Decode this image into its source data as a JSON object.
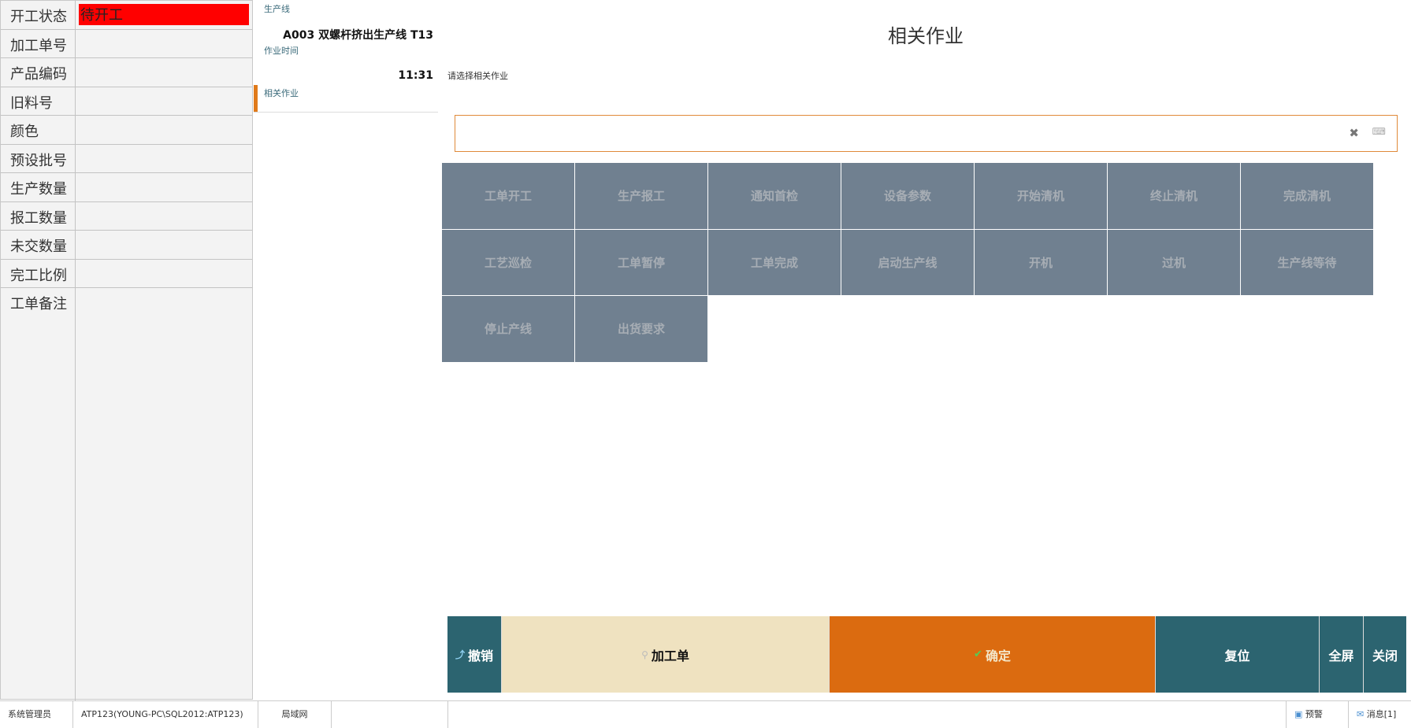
{
  "left": {
    "rows": [
      {
        "label": "开工状态",
        "value": "待开工",
        "highlight": "#ff0000"
      },
      {
        "label": "加工单号",
        "value": ""
      },
      {
        "label": "产品编码",
        "value": ""
      },
      {
        "label": "旧料号",
        "value": ""
      },
      {
        "label": "颜色",
        "value": ""
      },
      {
        "label": "预设批号",
        "value": ""
      },
      {
        "label": "生产数量",
        "value": ""
      },
      {
        "label": "报工数量",
        "value": ""
      },
      {
        "label": "未交数量",
        "value": ""
      },
      {
        "label": "完工比例",
        "value": ""
      },
      {
        "label": "工单备注",
        "value": ""
      }
    ]
  },
  "mid": {
    "line_label": "生产线",
    "line_value": "A003 双螺杆挤出生产线  T13",
    "time_label": "作业时间",
    "time_value": "11:31",
    "job_label": "相关作业"
  },
  "main": {
    "title": "相关作业",
    "hint": "请选择相关作业",
    "search_value": "",
    "clear_icon": "✖",
    "keyboard_icon": "⌨",
    "jobs": [
      "工单开工",
      "生产报工",
      "通知首检",
      "设备参数",
      "开始清机",
      "终止清机",
      "完成清机",
      "工艺巡检",
      "工单暂停",
      "工单完成",
      "启动生产线",
      "开机",
      "过机",
      "生产线等待",
      "停止产线",
      "出货要求"
    ]
  },
  "buttons": {
    "cancel": "撤销",
    "order": "加工单",
    "confirm": "确定",
    "reset": "复位",
    "fullscreen": "全屏",
    "close": "关闭"
  },
  "colors": {
    "teal": "#2c6470",
    "beige": "#efe2c0",
    "orange": "#db6b10",
    "tile": "#708090"
  },
  "status": {
    "user": "系统管理员",
    "db": "ATP123(YOUNG-PC\\SQL2012:ATP123)",
    "network": "局域网",
    "alert": "预警",
    "message": "消息[1]"
  }
}
